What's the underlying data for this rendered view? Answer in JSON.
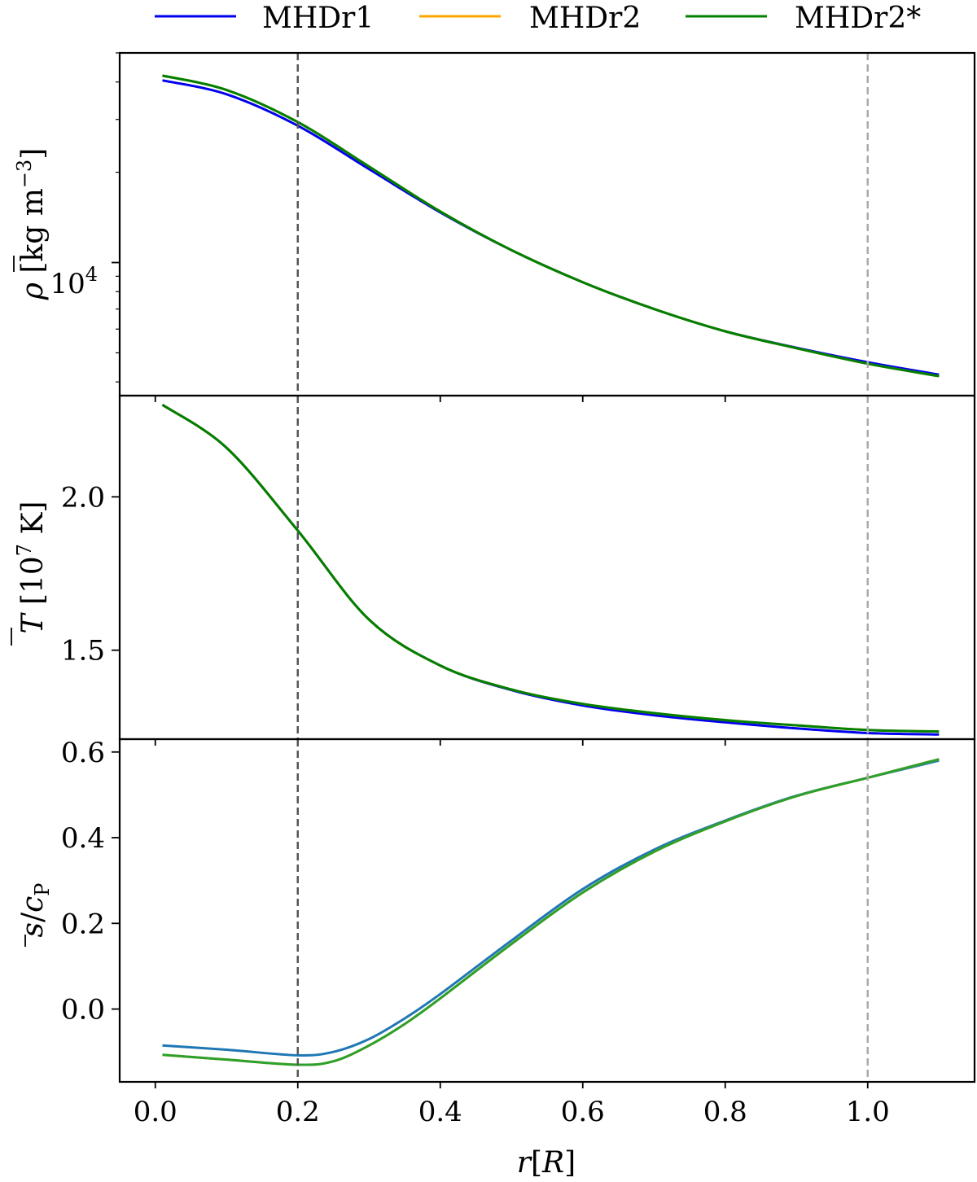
{
  "figure": {
    "legend": {
      "placement": "top",
      "entries": [
        {
          "label": "MHDr1",
          "color": "#0000ee"
        },
        {
          "label": "MHDr2",
          "color": "#ffa500"
        },
        {
          "label": "MHDr2*",
          "color": "#008000"
        }
      ]
    },
    "xlabel": "r[R]",
    "xlabel_parts": {
      "var": "r",
      "open": "[",
      "unit": "R",
      "close": "]"
    },
    "vlines": [
      {
        "x": 0.2,
        "color": "#555555",
        "style": "dashed"
      },
      {
        "x": 1.0,
        "color": "#aaaaaa",
        "style": "dashed"
      }
    ]
  },
  "chart_data": [
    {
      "type": "line",
      "panel": "density",
      "ylabel": "ρ̄ [kg m⁻³]",
      "ylabel_parts": {
        "symbol": "ρ",
        "open": " [kg m",
        "sup": "−3",
        "close": "]"
      },
      "yscale": "log",
      "ylim": [
        3600,
        50000
      ],
      "xlim": [
        -0.05,
        1.15
      ],
      "xticks": [
        0.0,
        0.2,
        0.4,
        0.6,
        0.8,
        1.0
      ],
      "ytick_labels": [
        {
          "base": "10",
          "exp": "4",
          "value": 10000
        }
      ],
      "series": [
        {
          "name": "MHDr1",
          "color": "#0000ee",
          "x": [
            0.01,
            0.1,
            0.2,
            0.3,
            0.4,
            0.5,
            0.6,
            0.7,
            0.8,
            0.9,
            1.0,
            1.1
          ],
          "y": [
            40500,
            36400,
            28600,
            20500,
            14700,
            11000,
            8600,
            7000,
            5900,
            5200,
            4650,
            4230
          ]
        },
        {
          "name": "MHDr2",
          "color": "#ffa500",
          "x": [
            0.01,
            0.1,
            0.2,
            0.3,
            0.4,
            0.5,
            0.6,
            0.7,
            0.8,
            0.9,
            1.0,
            1.1
          ],
          "y": [
            42000,
            37600,
            29400,
            20900,
            14800,
            11000,
            8600,
            7000,
            5900,
            5180,
            4600,
            4180
          ]
        },
        {
          "name": "MHDr2*",
          "color": "#008000",
          "x": [
            0.01,
            0.1,
            0.2,
            0.3,
            0.4,
            0.5,
            0.6,
            0.7,
            0.8,
            0.9,
            1.0,
            1.1
          ],
          "y": [
            42000,
            37600,
            29400,
            20900,
            14800,
            11000,
            8600,
            7000,
            5900,
            5180,
            4600,
            4180
          ]
        }
      ]
    },
    {
      "type": "line",
      "panel": "temperature",
      "ylabel": "T̄ [10⁷ K]",
      "ylabel_parts": {
        "symbol": "T",
        "open": " [10",
        "sup": "7",
        "close": " K]"
      },
      "ylim": [
        1.21,
        2.33
      ],
      "xlim": [
        -0.05,
        1.15
      ],
      "xticks": [
        0.0,
        0.2,
        0.4,
        0.6,
        0.8,
        1.0
      ],
      "ytick_labels": [
        {
          "label": "1.5",
          "value": 1.5
        },
        {
          "label": "2.0",
          "value": 2.0
        }
      ],
      "series": [
        {
          "name": "MHDr1",
          "color": "#0000ee",
          "x": [
            0.01,
            0.1,
            0.2,
            0.3,
            0.4,
            0.5,
            0.6,
            0.7,
            0.8,
            0.9,
            1.0,
            1.1
          ],
          "y": [
            2.3,
            2.16,
            1.89,
            1.6,
            1.45,
            1.37,
            1.32,
            1.288,
            1.265,
            1.245,
            1.23,
            1.225
          ]
        },
        {
          "name": "MHDr2",
          "color": "#ffa500",
          "x": [
            0.01,
            0.1,
            0.2,
            0.3,
            0.4,
            0.5,
            0.6,
            0.7,
            0.8,
            0.9,
            1.0,
            1.1
          ],
          "y": [
            2.3,
            2.16,
            1.89,
            1.6,
            1.45,
            1.372,
            1.325,
            1.295,
            1.272,
            1.255,
            1.24,
            1.235
          ]
        },
        {
          "name": "MHDr2*",
          "color": "#008000",
          "x": [
            0.01,
            0.1,
            0.2,
            0.3,
            0.4,
            0.5,
            0.6,
            0.7,
            0.8,
            0.9,
            1.0,
            1.1
          ],
          "y": [
            2.3,
            2.16,
            1.89,
            1.6,
            1.45,
            1.372,
            1.325,
            1.295,
            1.272,
            1.255,
            1.24,
            1.235
          ]
        }
      ]
    },
    {
      "type": "line",
      "panel": "entropy",
      "ylabel": "s̄/c_P",
      "ylabel_parts": {
        "symbol": "s",
        "slash": "/",
        "var": "c",
        "sub": "P"
      },
      "ylim": [
        -0.17,
        0.63
      ],
      "xlim": [
        -0.05,
        1.15
      ],
      "xticks": [
        0.0,
        0.2,
        0.4,
        0.6,
        0.8,
        1.0
      ],
      "xtick_labels": [
        "0.0",
        "0.2",
        "0.4",
        "0.6",
        "0.8",
        "1.0"
      ],
      "ytick_labels": [
        {
          "label": "0.0",
          "value": 0.0
        },
        {
          "label": "0.2",
          "value": 0.2
        },
        {
          "label": "0.4",
          "value": 0.4
        },
        {
          "label": "0.6",
          "value": 0.6
        }
      ],
      "series": [
        {
          "name": "MHDr1",
          "color": "#1f77b4",
          "x": [
            0.01,
            0.1,
            0.2,
            0.25,
            0.3,
            0.35,
            0.4,
            0.5,
            0.6,
            0.7,
            0.8,
            0.9,
            1.0,
            1.1
          ],
          "y": [
            -0.085,
            -0.095,
            -0.108,
            -0.1,
            -0.07,
            -0.022,
            0.035,
            0.16,
            0.28,
            0.372,
            0.44,
            0.498,
            0.54,
            0.58
          ]
        },
        {
          "name": "MHDr2",
          "color": "#ffa500",
          "x": [
            0.01,
            0.1,
            0.2,
            0.25,
            0.3,
            0.35,
            0.4,
            0.5,
            0.6,
            0.7,
            0.8,
            0.9,
            1.0,
            1.1
          ],
          "y": [
            -0.107,
            -0.118,
            -0.13,
            -0.122,
            -0.085,
            -0.035,
            0.025,
            0.152,
            0.272,
            0.367,
            0.438,
            0.497,
            0.54,
            0.583
          ]
        },
        {
          "name": "MHDr2*",
          "color": "#2ca02c",
          "x": [
            0.01,
            0.1,
            0.2,
            0.25,
            0.3,
            0.35,
            0.4,
            0.5,
            0.6,
            0.7,
            0.8,
            0.9,
            1.0,
            1.1
          ],
          "y": [
            -0.107,
            -0.118,
            -0.13,
            -0.122,
            -0.085,
            -0.035,
            0.025,
            0.152,
            0.272,
            0.367,
            0.438,
            0.497,
            0.54,
            0.583
          ]
        }
      ]
    }
  ]
}
